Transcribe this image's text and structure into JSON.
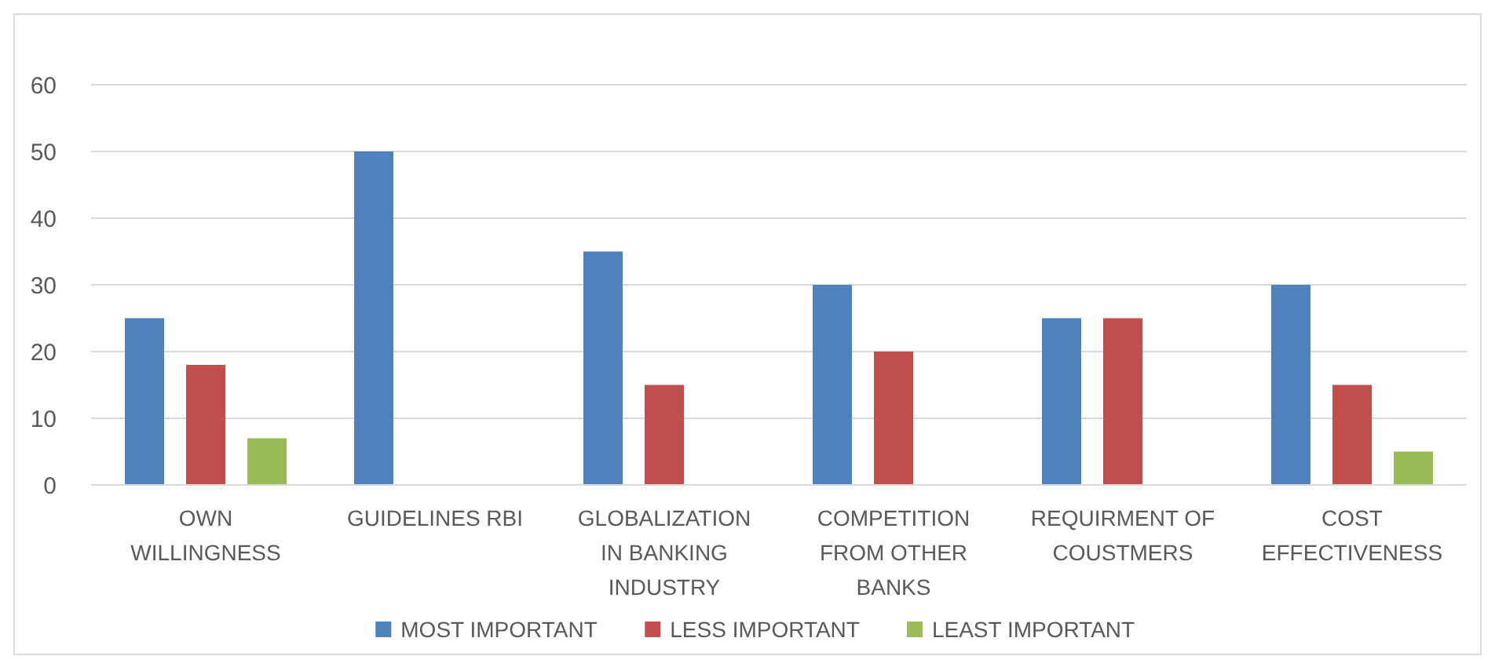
{
  "chart_data": {
    "type": "bar",
    "categories": [
      "OWN WILLINGNESS",
      "GUIDELINES RBI",
      "GLOBALIZATION IN BANKING INDUSTRY",
      "COMPETITION FROM OTHER BANKS",
      "REQUIRMENT OF COUSTMERS",
      "COST EFFECTIVENESS"
    ],
    "series": [
      {
        "name": "MOST IMPORTANT",
        "color": "#4f81bd",
        "values": [
          25,
          50,
          35,
          30,
          25,
          30
        ]
      },
      {
        "name": "LESS IMPORTANT",
        "color": "#c0504d",
        "values": [
          18,
          null,
          15,
          20,
          25,
          15
        ]
      },
      {
        "name": "LEAST IMPORTANT",
        "color": "#9bbb59",
        "values": [
          7,
          null,
          null,
          null,
          null,
          5
        ]
      }
    ],
    "ylim": [
      0,
      60
    ],
    "yticks": [
      0,
      10,
      20,
      30,
      40,
      50,
      60
    ],
    "grid": "y",
    "legend": "bottom"
  }
}
